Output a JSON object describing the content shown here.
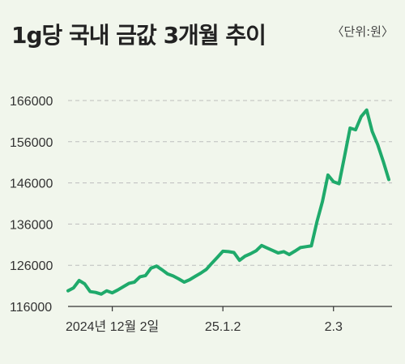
{
  "header": {
    "title": "1g당 국내 금값 3개월 추이",
    "unit": "〈단위:원〉"
  },
  "colors": {
    "background": "#f1f6ec",
    "line": "#1faa6b",
    "grid": "#bdbdbd",
    "axis": "#333333"
  },
  "chart_data": {
    "type": "line",
    "title": "1g당 국내 금값 3개월 추이",
    "xlabel": "",
    "ylabel": "",
    "y_unit": "원",
    "ylim": [
      116000,
      166000
    ],
    "yticks": [
      116000,
      126000,
      136000,
      146000,
      156000,
      166000
    ],
    "ytick_labels": [
      "116000",
      "126000",
      "136000",
      "146000",
      "156000",
      "166000"
    ],
    "grid": true,
    "x_ticks": [
      {
        "index": 8,
        "label": "2024년 12월 2일"
      },
      {
        "index": 28,
        "label": "25.1.2"
      },
      {
        "index": 48,
        "label": "2.3"
      }
    ],
    "series": [
      {
        "values": [
          119800,
          120500,
          122300,
          121500,
          119600,
          119400,
          119000,
          119800,
          119300,
          120000,
          120800,
          121600,
          121900,
          123200,
          123500,
          125300,
          125800,
          124900,
          123900,
          123400,
          122700,
          121900,
          122500,
          123300,
          124100,
          125000,
          126500,
          127900,
          129400,
          129300,
          129100,
          127200,
          128200,
          128800,
          129500,
          130800,
          130200,
          129600,
          129000,
          129300,
          128600,
          129400,
          130300,
          130500,
          130700,
          136500,
          141500,
          147900,
          146300,
          145800,
          152500,
          159300,
          158900,
          162100,
          163700,
          158500,
          155300,
          151200,
          146800
        ]
      }
    ]
  }
}
